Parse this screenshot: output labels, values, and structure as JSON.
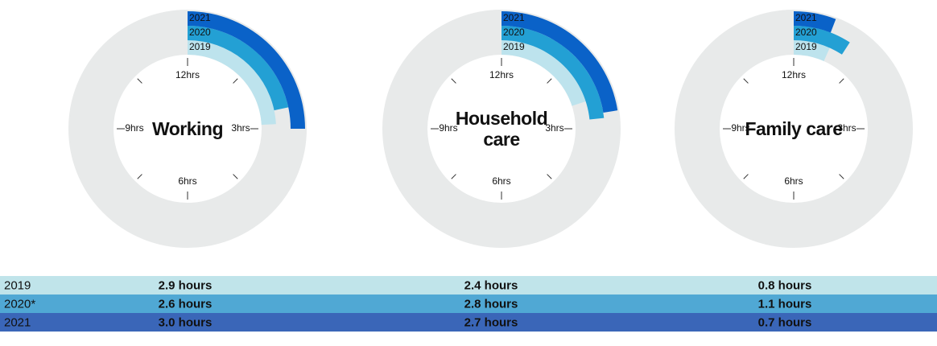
{
  "chart_data": [
    {
      "type": "radial_bar",
      "title": "Working",
      "categories": [
        "2019",
        "2020",
        "2021"
      ],
      "values": [
        2.9,
        2.6,
        3.0
      ],
      "value_labels": [
        "2.9 hours",
        "2.6 hours",
        "3.0 hours"
      ],
      "colors": [
        "#bde3ed",
        "#23a0d4",
        "#0a62c8"
      ],
      "lim": [
        0,
        12
      ],
      "ticks": [
        {
          "value": 12,
          "label": "12hrs"
        },
        {
          "value": 3,
          "label": "3hrs"
        },
        {
          "value": 6,
          "label": "6hrs"
        },
        {
          "value": 9,
          "label": "9hrs"
        }
      ],
      "minor_ticks": [
        1.5,
        4.5,
        7.5,
        10.5
      ]
    },
    {
      "type": "radial_bar",
      "title": "Household care",
      "categories": [
        "2019",
        "2020",
        "2021"
      ],
      "values": [
        2.4,
        2.8,
        2.7
      ],
      "value_labels": [
        "2.4 hours",
        "2.8 hours",
        "2.7 hours"
      ],
      "colors": [
        "#bde3ed",
        "#23a0d4",
        "#0a62c8"
      ],
      "lim": [
        0,
        12
      ],
      "ticks": [
        {
          "value": 12,
          "label": "12hrs"
        },
        {
          "value": 3,
          "label": "3hrs"
        },
        {
          "value": 6,
          "label": "6hrs"
        },
        {
          "value": 9,
          "label": "9hrs"
        }
      ],
      "minor_ticks": [
        1.5,
        4.5,
        7.5,
        10.5
      ]
    },
    {
      "type": "radial_bar",
      "title": "Family care",
      "categories": [
        "2019",
        "2020",
        "2021"
      ],
      "values": [
        0.8,
        1.1,
        0.7
      ],
      "value_labels": [
        "0.8 hours",
        "1.1 hours",
        "0.7 hours"
      ],
      "colors": [
        "#bde3ed",
        "#23a0d4",
        "#0a62c8"
      ],
      "lim": [
        0,
        12
      ],
      "ticks": [
        {
          "value": 12,
          "label": "12hrs"
        },
        {
          "value": 3,
          "label": "3hrs"
        },
        {
          "value": 6,
          "label": "6hrs"
        },
        {
          "value": 9,
          "label": "9hrs"
        }
      ],
      "minor_ticks": [
        1.5,
        4.5,
        7.5,
        10.5
      ]
    }
  ],
  "table": {
    "row_labels": [
      "2019",
      "2020*",
      "2021"
    ],
    "row_colors": [
      "#c0e4ea",
      "#50a8d4",
      "#3a66b8"
    ]
  }
}
